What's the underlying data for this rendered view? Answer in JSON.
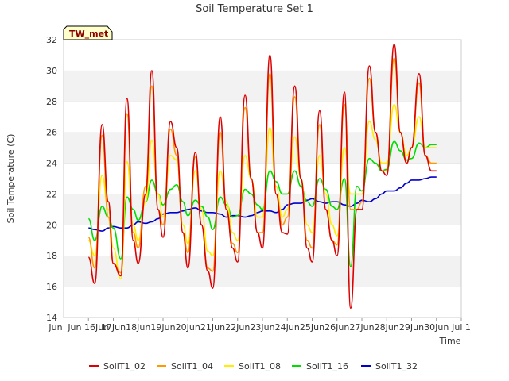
{
  "chart_data": {
    "type": "line",
    "title": "Soil Temperature Set 1",
    "xlabel": "Time",
    "ylabel": "Soil Temperature (C)",
    "badge": "TW_met",
    "ylim": [
      14,
      32
    ],
    "yticks": [
      14,
      16,
      18,
      20,
      22,
      24,
      26,
      28,
      30,
      32
    ],
    "xlim": [
      "Jun 15",
      "Jul 1"
    ],
    "xticks": [
      "Jun 16",
      "Jun 17",
      "Jun 18",
      "Jun 19",
      "Jun 20",
      "Jun 21",
      "Jun 22",
      "Jun 23",
      "Jun 24",
      "Jun 25",
      "Jun 26",
      "Jun 27",
      "Jun 28",
      "Jun 29",
      "Jun 30",
      "Jul 1"
    ],
    "xtick_labels": [
      "Jun 16Jun",
      "17Jun",
      "18Jun",
      "19Jun",
      "20Jun",
      "21Jun",
      "22Jun",
      "23Jun",
      "24Jun",
      "25Jun",
      "26Jun",
      "27Jun",
      "28Jun",
      "29Jun",
      "30Jun",
      "Jul 1"
    ],
    "first_tick_label": "Jun",
    "grid": "horizontal-bands",
    "legend_position": "bottom",
    "series": [
      {
        "name": "SoilT1_02",
        "color": "#dd0000",
        "x": [
          "Jun 16",
          "Jun 16",
          "Jun 16",
          "Jun 16",
          "Jun 17",
          "Jun 17",
          "Jun 17",
          "Jun 17",
          "Jun 18",
          "Jun 18",
          "Jun 18",
          "Jun 18",
          "Jun 19",
          "Jun 19",
          "Jun 19",
          "Jun 19",
          "Jun 20",
          "Jun 20",
          "Jun 20",
          "Jun 20",
          "Jun 21",
          "Jun 21",
          "Jun 21",
          "Jun 21",
          "Jun 22",
          "Jun 22",
          "Jun 22",
          "Jun 22",
          "Jun 23",
          "Jun 23",
          "Jun 23",
          "Jun 23",
          "Jun 24",
          "Jun 24",
          "Jun 24",
          "Jun 24",
          "Jun 25",
          "Jun 25",
          "Jun 25",
          "Jun 25",
          "Jun 26",
          "Jun 26",
          "Jun 26",
          "Jun 26",
          "Jun 27",
          "Jun 27",
          "Jun 27",
          "Jun 27",
          "Jun 28",
          "Jun 28",
          "Jun 28",
          "Jun 28",
          "Jun 29",
          "Jun 29",
          "Jun 29",
          "Jun 29",
          "Jun 30",
          "Jun 30"
        ],
        "x_offset_days": [
          0.0,
          0.25,
          0.55,
          0.8,
          0.0,
          0.3,
          0.55,
          0.8,
          0.0,
          0.3,
          0.55,
          0.8,
          0.0,
          0.3,
          0.55,
          0.8,
          0.0,
          0.3,
          0.55,
          0.8,
          0.0,
          0.3,
          0.55,
          0.8,
          0.0,
          0.3,
          0.55,
          0.8,
          0.0,
          0.3,
          0.55,
          0.8,
          0.0,
          0.3,
          0.55,
          0.8,
          0.0,
          0.3,
          0.55,
          0.8,
          0.0,
          0.3,
          0.55,
          0.8,
          0.0,
          0.3,
          0.55,
          0.8,
          0.0,
          0.3,
          0.55,
          0.8,
          0.0,
          0.3,
          0.55,
          0.8,
          0.0,
          0.0
        ],
        "values": [
          17.9,
          16.2,
          26.5,
          21.5,
          17.5,
          16.7,
          28.2,
          19.0,
          17.5,
          22.0,
          30.0,
          21.0,
          19.2,
          26.7,
          25.0,
          19.5,
          17.2,
          24.7,
          20.0,
          17.0,
          15.9,
          27.0,
          21.0,
          18.5,
          17.6,
          28.4,
          23.0,
          19.5,
          18.5,
          31.0,
          22.0,
          19.5,
          19.4,
          29.0,
          23.0,
          18.5,
          17.6,
          27.4,
          21.0,
          19.0,
          18.0,
          28.6,
          14.6,
          21.0,
          21.0,
          30.3,
          26.0,
          23.5,
          23.2,
          31.7,
          26.0,
          24.0,
          25.0,
          29.8,
          24.5,
          23.5,
          23.5,
          23.5
        ]
      },
      {
        "name": "SoilT1_04",
        "color": "#ff9900",
        "values": [
          19.2,
          17.2,
          25.8,
          20.5,
          17.5,
          16.9,
          27.2,
          19.5,
          18.5,
          22.5,
          29.0,
          21.0,
          20.0,
          26.2,
          24.5,
          19.5,
          18.2,
          24.4,
          20.0,
          17.2,
          17.0,
          26.0,
          21.0,
          18.8,
          18.2,
          27.6,
          23.0,
          19.5,
          19.5,
          29.8,
          22.0,
          20.0,
          20.5,
          28.3,
          23.0,
          19.0,
          18.5,
          26.5,
          21.0,
          19.0,
          18.7,
          27.8,
          21.0,
          21.0,
          21.5,
          29.5,
          26.0,
          23.5,
          23.5,
          30.8,
          26.0,
          24.0,
          25.0,
          29.2,
          24.5,
          24.0,
          24.0,
          24.0
        ]
      },
      {
        "name": "SoilT1_08",
        "color": "#ffee00",
        "values": [
          19.0,
          18.0,
          23.2,
          21.0,
          18.5,
          16.5,
          24.1,
          20.0,
          19.0,
          21.5,
          25.5,
          22.0,
          20.5,
          24.5,
          24.2,
          20.0,
          18.8,
          23.5,
          21.0,
          18.3,
          18.0,
          23.5,
          21.5,
          19.5,
          19.0,
          24.5,
          23.0,
          20.5,
          20.5,
          26.3,
          22.5,
          20.5,
          21.0,
          25.7,
          23.0,
          20.0,
          19.5,
          24.5,
          22.0,
          20.0,
          19.3,
          25.0,
          22.0,
          22.0,
          22.0,
          26.7,
          25.5,
          24.0,
          24.0,
          27.8,
          26.0,
          24.5,
          25.0,
          27.0,
          25.0,
          25.0,
          25.0,
          25.0
        ]
      },
      {
        "name": "SoilT1_16",
        "color": "#00dd00",
        "values": [
          20.4,
          19.0,
          21.2,
          20.5,
          19.8,
          17.8,
          21.8,
          21.0,
          20.3,
          21.5,
          22.9,
          22.0,
          21.3,
          22.3,
          22.6,
          21.5,
          20.6,
          21.6,
          21.2,
          20.5,
          19.7,
          21.8,
          21.3,
          20.5,
          20.6,
          22.3,
          22.0,
          21.3,
          21.0,
          23.5,
          22.8,
          22.0,
          22.0,
          23.5,
          22.5,
          21.5,
          21.2,
          23.0,
          22.3,
          21.2,
          21.0,
          23.0,
          17.3,
          22.5,
          22.2,
          24.3,
          24.0,
          23.5,
          23.6,
          25.4,
          24.8,
          24.2,
          24.3,
          25.3,
          25.0,
          25.2,
          25.2,
          25.2
        ]
      },
      {
        "name": "SoilT1_32",
        "color": "#0000cc",
        "values": [
          19.8,
          19.7,
          19.6,
          19.8,
          19.9,
          19.8,
          19.8,
          20.0,
          20.2,
          20.1,
          20.2,
          20.4,
          20.7,
          20.8,
          20.8,
          20.9,
          21.0,
          21.1,
          20.9,
          20.8,
          20.8,
          20.7,
          20.5,
          20.6,
          20.6,
          20.5,
          20.6,
          20.8,
          20.9,
          20.9,
          20.8,
          21.0,
          21.3,
          21.4,
          21.4,
          21.6,
          21.7,
          21.5,
          21.4,
          21.5,
          21.5,
          21.3,
          21.2,
          21.4,
          21.6,
          21.5,
          21.7,
          22.0,
          22.2,
          22.2,
          22.4,
          22.7,
          22.9,
          22.9,
          23.0,
          23.1,
          23.1,
          23.1
        ]
      }
    ]
  }
}
